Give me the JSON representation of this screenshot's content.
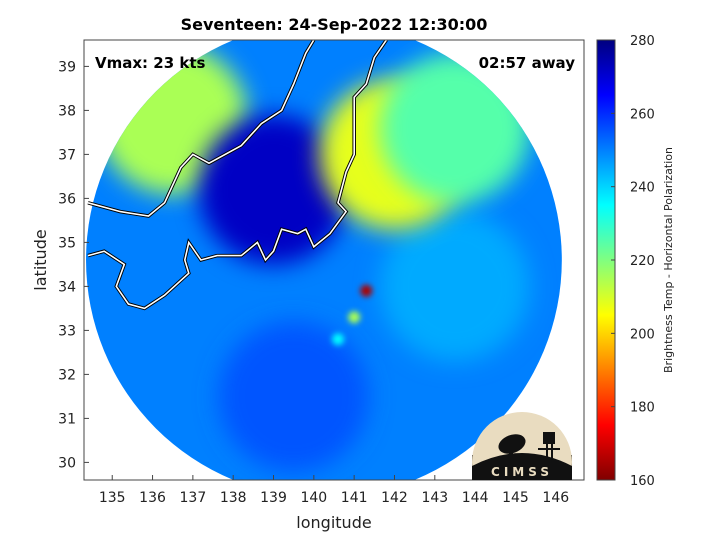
{
  "chart_data": {
    "type": "heatmap",
    "title": "Seventeen: 24-Sep-2022 12:30:00",
    "xlabel": "longitude",
    "ylabel": "latitude",
    "xlim": [
      134.3,
      146.7
    ],
    "ylim": [
      29.6,
      39.6
    ],
    "x_ticks": [
      135,
      136,
      137,
      138,
      139,
      140,
      141,
      142,
      143,
      144,
      145,
      146
    ],
    "y_ticks": [
      30,
      31,
      32,
      33,
      34,
      35,
      36,
      37,
      38,
      39
    ],
    "annotations": {
      "vmax": "Vmax: 23 kts",
      "away": "02:57 away"
    },
    "colorbar": {
      "label": "Brightness Temp - Horizontal Polarization",
      "range": [
        160,
        280
      ],
      "ticks": [
        160,
        180,
        200,
        220,
        240,
        260,
        280
      ],
      "colors": [
        "#800000",
        "#ff0000",
        "#ff8000",
        "#ffff00",
        "#80ff80",
        "#00ffff",
        "#0080ff",
        "#0000ff",
        "#000080"
      ]
    },
    "swath": {
      "center_lon": 140.25,
      "center_lat": 34.6,
      "radius_deg": 5.9,
      "background_value": 250,
      "regions": [
        {
          "name": "cold-land-north",
          "lon": 136.5,
          "lat": 37.8,
          "value": 215
        },
        {
          "name": "land-interior",
          "lon": 139.0,
          "lat": 36.2,
          "value": 272
        },
        {
          "name": "ocean-east",
          "lon": 143.5,
          "lat": 34.0,
          "value": 245
        },
        {
          "name": "ocean-south",
          "lon": 139.5,
          "lat": 31.5,
          "value": 255
        },
        {
          "name": "convection-core",
          "lon": 141.3,
          "lat": 33.9,
          "value": 165
        },
        {
          "name": "rainband-1",
          "lon": 141.0,
          "lat": 33.3,
          "value": 215
        },
        {
          "name": "rainband-2",
          "lon": 140.6,
          "lat": 32.8,
          "value": 235
        },
        {
          "name": "warm-patch-ne",
          "lon": 142.0,
          "lat": 37.0,
          "value": 208
        },
        {
          "name": "warm-patch-ne2",
          "lon": 143.5,
          "lat": 37.6,
          "value": 225
        }
      ]
    },
    "logo_text": "CIMSS"
  }
}
